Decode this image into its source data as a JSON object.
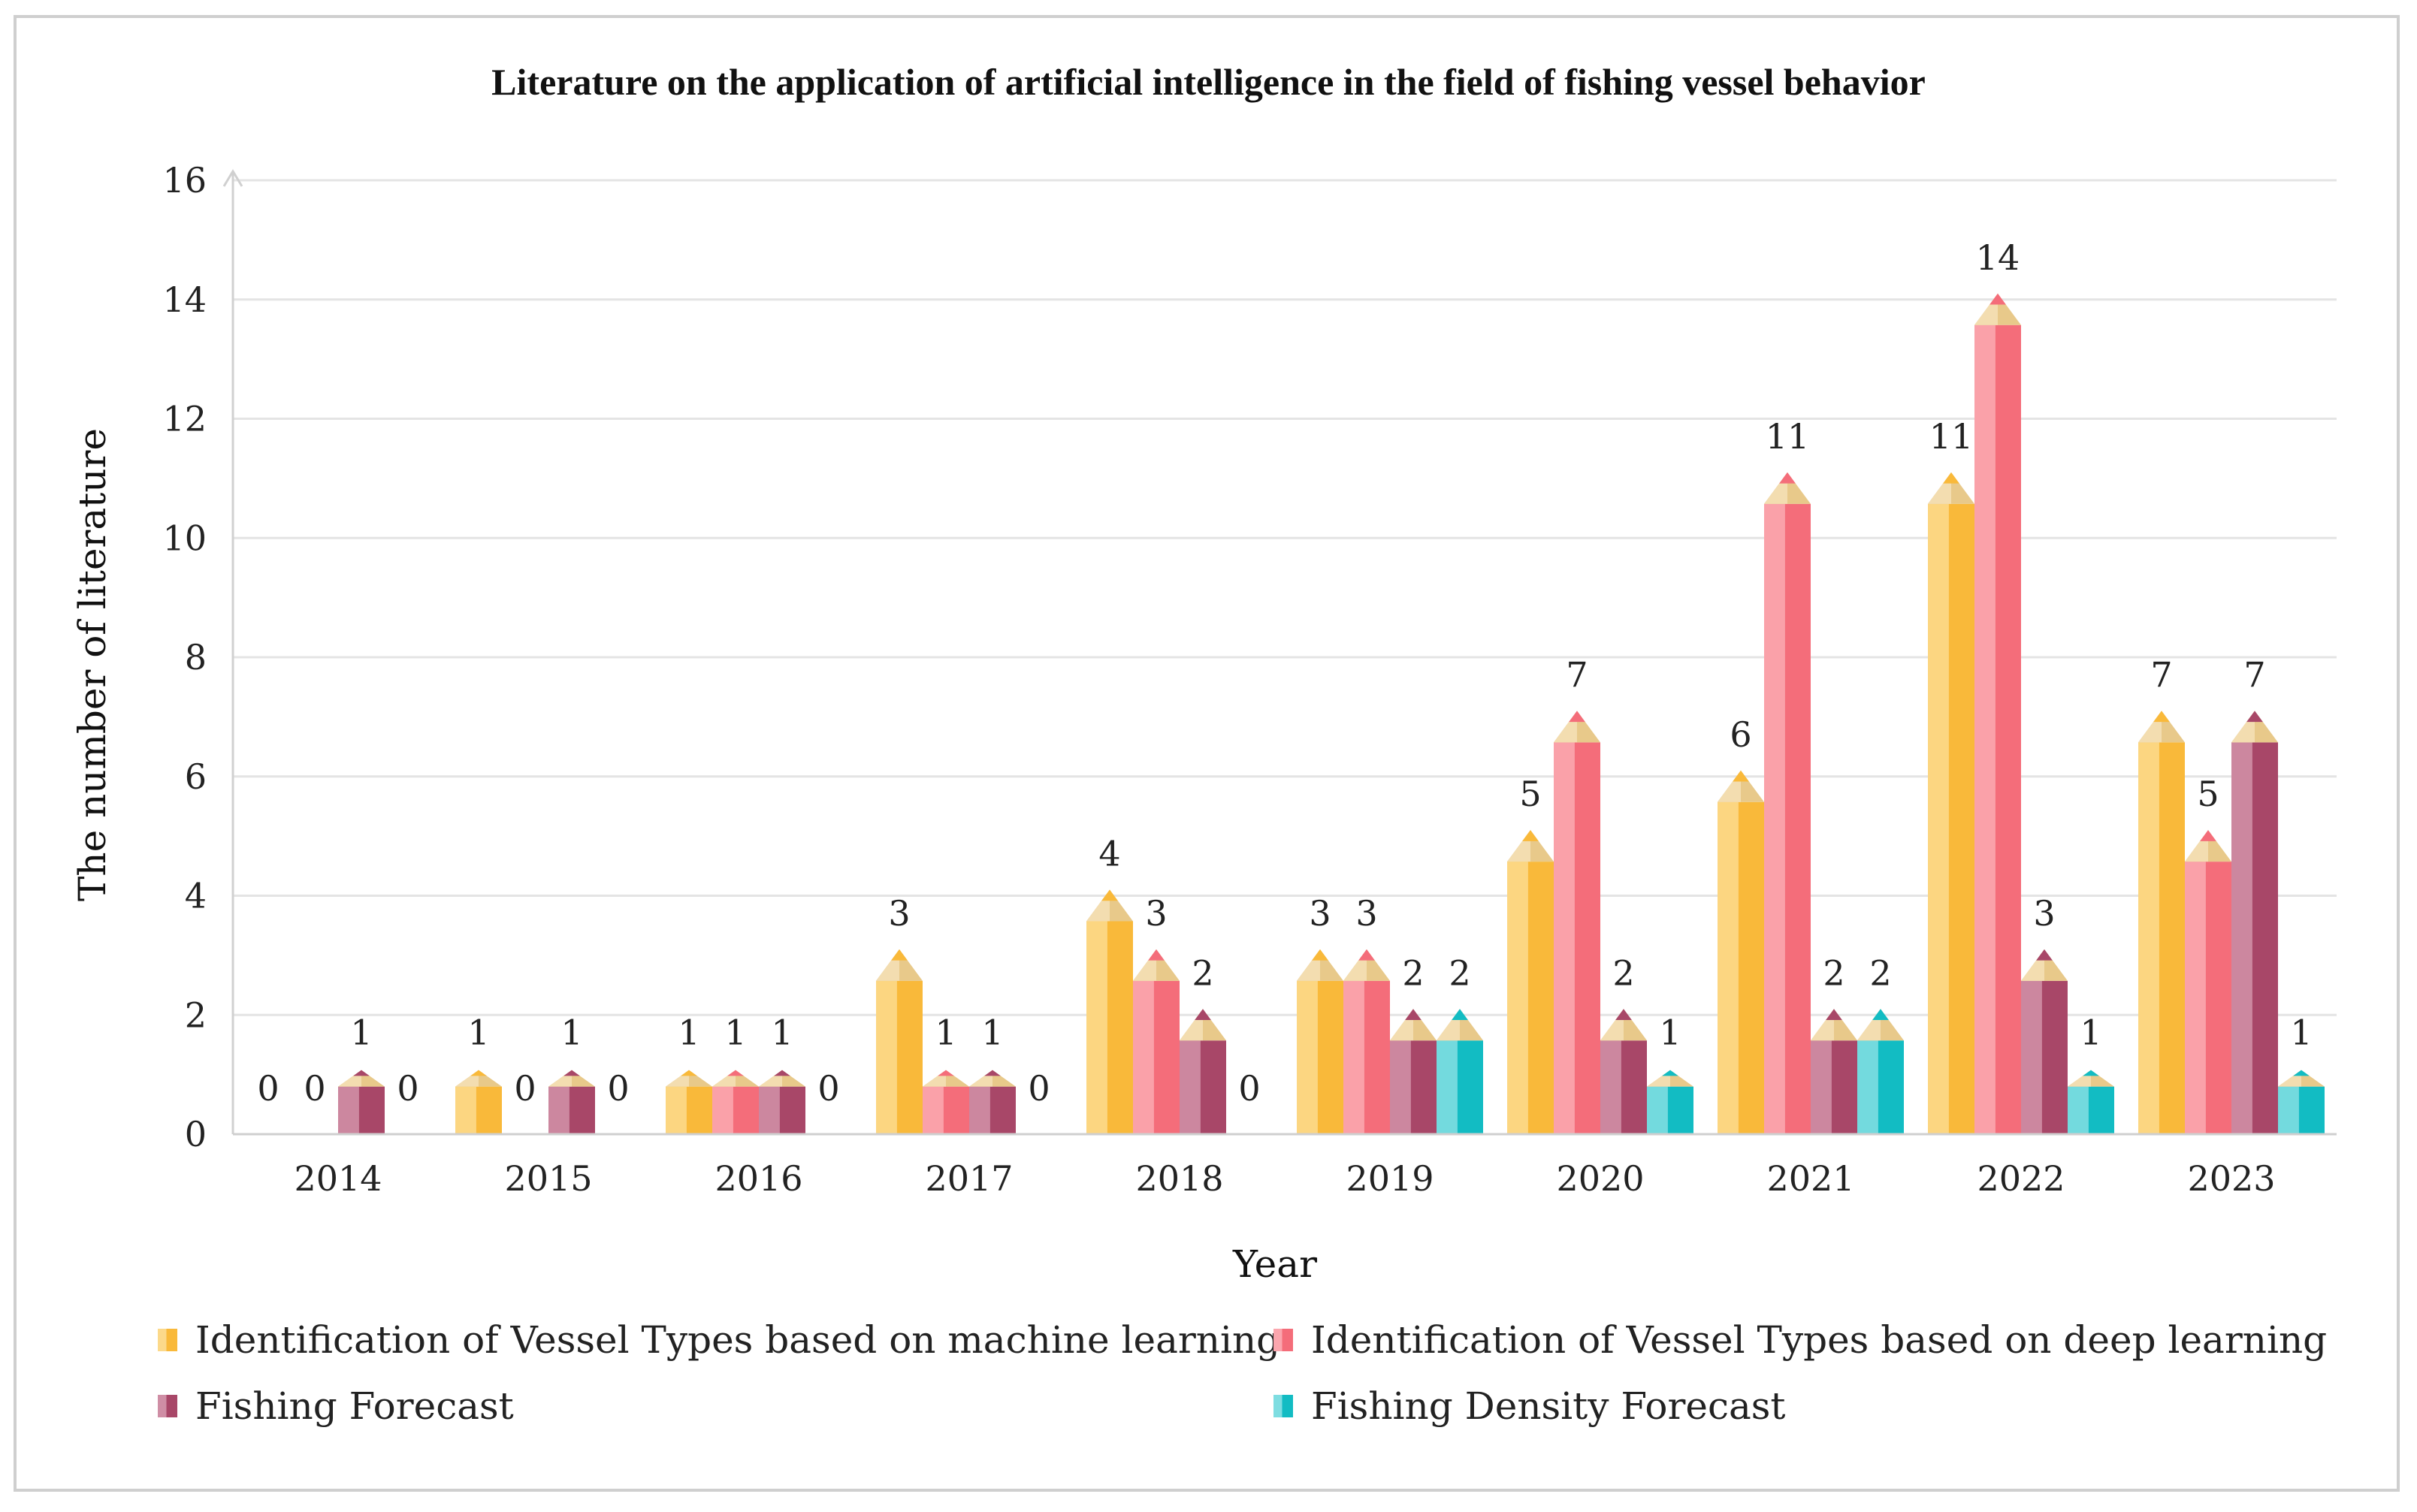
{
  "chart_data": {
    "type": "bar",
    "title": "Literature on the application of artificial intelligence in the field of fishing vessel behavior",
    "xlabel": "Year",
    "ylabel": "The number of literature",
    "ylim": [
      0,
      16
    ],
    "yticks": [
      "0",
      "2",
      "4",
      "6",
      "8",
      "10",
      "12",
      "14",
      "16"
    ],
    "categories": [
      "2014",
      "2015",
      "2016",
      "2017",
      "2018",
      "2019",
      "2020",
      "2021",
      "2022",
      "2023"
    ],
    "series": [
      {
        "name": "Identification of Vessel Types based on machine learning",
        "color": "#F9B93A",
        "light": "#FCD98A",
        "values": [
          0,
          1,
          1,
          3,
          4,
          3,
          5,
          6,
          11,
          7
        ],
        "labels": [
          "0",
          "1",
          "1",
          "3",
          "4",
          "3",
          "5",
          "6",
          "11",
          "7"
        ]
      },
      {
        "name": "Identification of Vessel Types based on deep learning",
        "color": "#F46D7A",
        "light": "#FBA6AE",
        "values": [
          0,
          0,
          1,
          1,
          3,
          3,
          7,
          11,
          14,
          5
        ],
        "labels": [
          "0",
          "0",
          "1",
          "1",
          "3",
          "3",
          "7",
          "11",
          "14",
          "5"
        ]
      },
      {
        "name": "Fishing Forecast",
        "color": "#A84768",
        "light": "#CF8EA5",
        "values": [
          1,
          1,
          1,
          1,
          2,
          2,
          2,
          2,
          3,
          7
        ],
        "labels": [
          "1",
          "1",
          "1",
          "1",
          "2",
          "2",
          "2",
          "2",
          "3",
          "7"
        ]
      },
      {
        "name": "Fishing Density Forecast",
        "color": "#12BCC3",
        "light": "#7EDDE1",
        "values": [
          0,
          0,
          0,
          0,
          0,
          2,
          1,
          2,
          1,
          1
        ],
        "labels": [
          "0",
          "0",
          "0",
          "0",
          "0",
          "2",
          "1",
          "2",
          "1",
          "1"
        ]
      }
    ],
    "grid": true,
    "legend_position": "bottom"
  }
}
